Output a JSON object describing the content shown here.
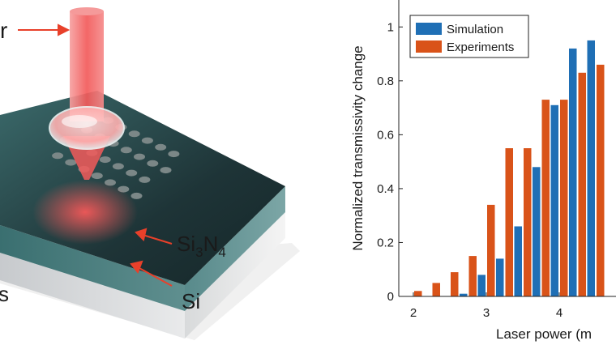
{
  "illustration": {
    "label_laser_partial": "r",
    "label_sin": {
      "base1": "Si",
      "sub1": "3",
      "base2": "N",
      "sub2": "4"
    },
    "label_si": "Si",
    "label_left_partial": "s",
    "colors": {
      "beam": "#f25a5a",
      "film": "#1f3a3d",
      "substrate": "#d4d6d8",
      "arrow": "#e8402a"
    }
  },
  "chart_data": {
    "type": "bar",
    "categories": [
      2,
      2.25,
      2.5,
      2.75,
      3,
      3.25,
      3.5,
      3.75,
      4,
      4.25,
      4.5
    ],
    "series": [
      {
        "name": "Simulation",
        "color": "#1f6fb5",
        "values": [
          0,
          0,
          0,
          0.01,
          0.08,
          0.14,
          0.26,
          0.48,
          0.71,
          0.92,
          0.95
        ]
      },
      {
        "name": "Experiments",
        "color": "#d95319",
        "values": [
          0.02,
          0.05,
          0.09,
          0.15,
          0.34,
          0.55,
          0.55,
          0.73,
          0.73,
          0.83,
          0.86
        ]
      }
    ],
    "xlabel": "Laser power (m",
    "ylabel": "Normalized transmissivity change",
    "xticks": [
      2,
      3,
      4
    ],
    "yticks": [
      0,
      0.2,
      0.4,
      0.6,
      0.8,
      1
    ],
    "ylim": [
      0,
      1.1
    ],
    "legend_position": "top-left",
    "grid": false
  }
}
